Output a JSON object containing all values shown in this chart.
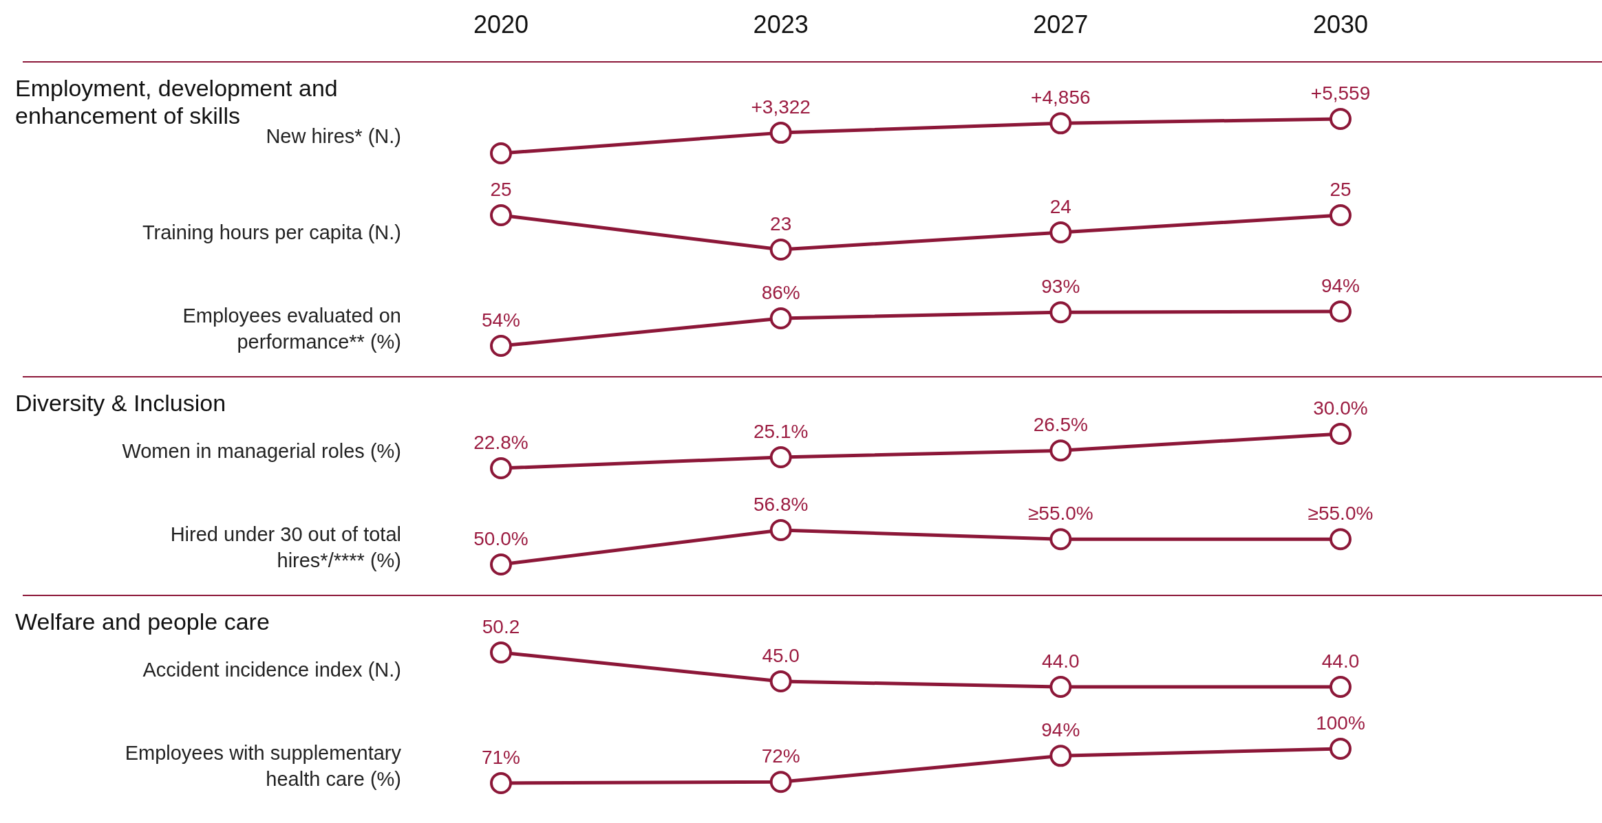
{
  "chart_data": [
    {
      "type": "line",
      "title": "Employment, development and enhancement of skills",
      "ylabel": "New hires* (N.)",
      "categories": [
        "2020",
        "2023",
        "2027",
        "2030"
      ],
      "tick_labels": "x",
      "marker": "circle",
      "series": [
        {
          "color": "#8c1738",
          "values": [
            0,
            3322,
            4856,
            5559
          ],
          "value_labels": [
            null,
            "+3,322",
            "+4,856",
            "+5,559"
          ]
        }
      ]
    },
    {
      "type": "line",
      "ylabel": "Training hours per capita (N.)",
      "categories": [
        null,
        null,
        null,
        null
      ],
      "tick_labels": false,
      "marker": "circle",
      "series": [
        {
          "color": "#8c1738",
          "values": [
            25,
            23,
            24,
            25
          ],
          "value_labels": [
            "25",
            "23",
            "24",
            "25"
          ]
        }
      ]
    },
    {
      "type": "line",
      "ylabel": "Employees evaluated on performance** (%)",
      "categories": [
        null,
        null,
        null,
        null
      ],
      "tick_labels": false,
      "marker": "circle",
      "series": [
        {
          "color": "#8c1738",
          "values": [
            54,
            86,
            93,
            94
          ],
          "value_labels": [
            "54%",
            "86%",
            "93%",
            "94%"
          ]
        }
      ]
    },
    {
      "type": "line",
      "title": "Diversity & Inclusion",
      "ylabel": "Women in managerial roles (%)",
      "categories": [
        null,
        null,
        null,
        null
      ],
      "tick_labels": false,
      "marker": "circle",
      "series": [
        {
          "color": "#8c1738",
          "values": [
            22.8,
            25.1,
            26.5,
            30.0
          ],
          "value_labels": [
            "22.8%",
            "25.1%",
            "26.5%",
            "30.0%"
          ]
        }
      ]
    },
    {
      "type": "line",
      "ylabel": "Hired under 30 out of total hires*/**** (%)",
      "categories": [
        null,
        null,
        null,
        null
      ],
      "tick_labels": false,
      "marker": "circle",
      "series": [
        {
          "color": "#8c1738",
          "values": [
            50.0,
            56.8,
            55.0,
            55.0
          ],
          "value_labels": [
            "50.0%",
            "56.8%",
            "≥55.0%",
            "≥55.0%"
          ]
        }
      ]
    },
    {
      "type": "line",
      "title": "Welfare and people care",
      "ylabel": "Accident incidence index (N.)",
      "categories": [
        null,
        null,
        null,
        null
      ],
      "tick_labels": false,
      "marker": "circle",
      "series": [
        {
          "color": "#8c1738",
          "values": [
            50.2,
            45.0,
            44.0,
            44.0
          ],
          "value_labels": [
            "50.2",
            "45.0",
            "44.0",
            "44.0"
          ]
        }
      ]
    },
    {
      "type": "line",
      "ylabel": "Employees with supplementary health care (%)",
      "categories": [
        null,
        null,
        null,
        null
      ],
      "tick_labels": false,
      "marker": "circle",
      "series": [
        {
          "color": "#8c1738",
          "values": [
            71,
            72,
            94,
            100
          ],
          "value_labels": [
            "71%",
            "72%",
            "94%",
            "100%"
          ]
        }
      ]
    }
  ]
}
